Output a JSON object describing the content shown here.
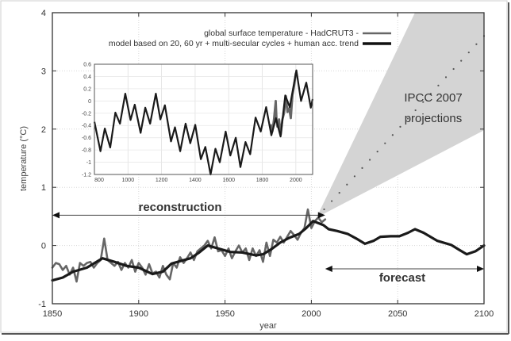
{
  "chart_data": {
    "type": "line",
    "title": "",
    "xlabel": "year",
    "ylabel": "temperature (°C)",
    "xlim": [
      1850,
      2100
    ],
    "ylim": [
      -1,
      4
    ],
    "xticks": [
      1850,
      1900,
      1950,
      2000,
      2050,
      2100
    ],
    "yticks": [
      -1,
      0,
      1,
      2,
      3,
      4
    ],
    "grid": true,
    "legend": {
      "position": "top-right",
      "entries": [
        {
          "label": "global surface temperature - HadCRUT3 -",
          "color": "#666666"
        },
        {
          "label": "model based on 20, 60 yr + multi-secular cycles + human acc. trend",
          "color": "#1a1a1a"
        }
      ]
    },
    "series": [
      {
        "name": "global surface temperature - HadCRUT3 -",
        "color": "#666666",
        "x": [
          1850,
          1852,
          1854,
          1856,
          1858,
          1860,
          1862,
          1864,
          1866,
          1868,
          1870,
          1872,
          1874,
          1876,
          1878,
          1880,
          1882,
          1884,
          1886,
          1888,
          1890,
          1892,
          1894,
          1896,
          1898,
          1900,
          1902,
          1904,
          1906,
          1908,
          1910,
          1912,
          1914,
          1916,
          1918,
          1920,
          1922,
          1924,
          1926,
          1928,
          1930,
          1932,
          1934,
          1936,
          1938,
          1940,
          1942,
          1944,
          1946,
          1948,
          1950,
          1952,
          1954,
          1956,
          1958,
          1960,
          1962,
          1964,
          1966,
          1968,
          1970,
          1972,
          1974,
          1976,
          1978,
          1980,
          1982,
          1984,
          1986,
          1988,
          1990,
          1992,
          1994,
          1996,
          1998,
          2000,
          2002,
          2004,
          2006,
          2008
        ],
        "values": [
          -0.38,
          -0.3,
          -0.32,
          -0.42,
          -0.35,
          -0.5,
          -0.38,
          -0.62,
          -0.3,
          -0.35,
          -0.3,
          -0.28,
          -0.38,
          -0.3,
          -0.25,
          0.12,
          -0.25,
          -0.3,
          -0.35,
          -0.28,
          -0.42,
          -0.3,
          -0.38,
          -0.25,
          -0.45,
          -0.3,
          -0.38,
          -0.5,
          -0.32,
          -0.48,
          -0.45,
          -0.55,
          -0.35,
          -0.5,
          -0.58,
          -0.3,
          -0.38,
          -0.2,
          -0.3,
          -0.22,
          -0.12,
          -0.25,
          -0.1,
          -0.05,
          0.0,
          0.08,
          -0.05,
          0.14,
          -0.1,
          -0.08,
          -0.18,
          -0.05,
          -0.22,
          -0.1,
          0.0,
          -0.12,
          -0.05,
          -0.25,
          -0.05,
          -0.18,
          -0.08,
          -0.28,
          0.05,
          -0.18,
          0.1,
          0.05,
          0.15,
          0.05,
          0.15,
          0.25,
          0.18,
          0.1,
          0.22,
          0.3,
          0.62,
          0.3,
          0.42,
          0.48,
          0.4,
          0.45
        ]
      },
      {
        "name": "model based on 20, 60 yr + multi-secular cycles + human acc. trend",
        "color": "#1a1a1a",
        "x": [
          1850,
          1856,
          1862,
          1870,
          1879,
          1886,
          1893,
          1900,
          1908,
          1914,
          1919,
          1925,
          1930,
          1935,
          1940,
          1946,
          1953,
          1960,
          1968,
          1972,
          1977,
          1982,
          1987,
          1993,
          1997,
          2001,
          2007,
          2010,
          2015,
          2021,
          2026,
          2031,
          2036,
          2040,
          2046,
          2051,
          2056,
          2060,
          2065,
          2073,
          2081,
          2086,
          2090,
          2095,
          2100
        ],
        "values": [
          -0.6,
          -0.55,
          -0.45,
          -0.38,
          -0.22,
          -0.28,
          -0.35,
          -0.38,
          -0.49,
          -0.45,
          -0.31,
          -0.26,
          -0.22,
          -0.12,
          0.0,
          -0.05,
          -0.11,
          -0.12,
          -0.17,
          -0.15,
          -0.06,
          0.05,
          0.13,
          0.2,
          0.3,
          0.42,
          0.35,
          0.28,
          0.25,
          0.2,
          0.12,
          0.03,
          0.08,
          0.15,
          0.16,
          0.16,
          0.22,
          0.28,
          0.22,
          0.08,
          0.01,
          -0.08,
          -0.15,
          -0.1,
          0.0
        ]
      }
    ],
    "projection_band": {
      "name": "IPCC 2007 projections",
      "color": "#d4d4d4",
      "origin": {
        "x": 2003,
        "y": 0.48
      },
      "upper": {
        "x": 2060,
        "y": 4.0
      },
      "lower": {
        "x": 2100,
        "y": 1.98
      },
      "central_dotted": {
        "x": 2100,
        "y": 3.6
      }
    },
    "annotations": [
      {
        "text": "reconstruction",
        "arrow_from": 1850,
        "arrow_to": 2008,
        "y": 0.52
      },
      {
        "text": "forecast",
        "arrow_from": 2008,
        "arrow_to": 2100,
        "y": -0.4
      },
      {
        "text_line1": "IPCC 2007",
        "text_line2": "projections"
      }
    ],
    "inset": {
      "type": "line",
      "xlim": [
        800,
        2100
      ],
      "ylim": [
        -1.2,
        0.6
      ],
      "xticks": [
        800,
        1000,
        1200,
        1400,
        1600,
        1800,
        2000
      ],
      "yticks": [
        0.6,
        0.4,
        0.2,
        0,
        -0.2,
        -0.4,
        -0.6,
        -0.8,
        -1,
        -1.2
      ],
      "ytick_labels": [
        "0.6",
        "0.4",
        "0.2",
        "0",
        "-0.2",
        "-0.4",
        "-0.6",
        "-0.8",
        "-1",
        "-1.2"
      ],
      "model": {
        "x": [
          800,
          836,
          862,
          894,
          925,
          952,
          984,
          1015,
          1040,
          1075,
          1103,
          1132,
          1166,
          1193,
          1220,
          1256,
          1280,
          1311,
          1343,
          1371,
          1401,
          1434,
          1461,
          1492,
          1521,
          1547,
          1582,
          1610,
          1642,
          1670,
          1700,
          1728,
          1760,
          1791,
          1823,
          1854,
          1881,
          1909,
          1937,
          1964,
          2003,
          2031,
          2062,
          2089,
          2100
        ],
        "values": [
          -0.34,
          -0.82,
          -0.45,
          -0.76,
          -0.19,
          -0.37,
          0.12,
          -0.31,
          -0.06,
          -0.52,
          -0.11,
          -0.37,
          0.12,
          -0.3,
          -0.07,
          -0.66,
          -0.43,
          -0.82,
          -0.37,
          -0.69,
          -0.39,
          -0.95,
          -0.75,
          -1.2,
          -0.78,
          -1.0,
          -0.5,
          -0.89,
          -0.6,
          -1.08,
          -0.67,
          -0.87,
          -0.27,
          -0.5,
          -0.1,
          -0.56,
          -0.28,
          -0.58,
          0.09,
          -0.1,
          0.5,
          0.0,
          0.3,
          -0.11,
          0.03
        ]
      },
      "observed": {
        "x": [
          1850,
          1860,
          1870,
          1880,
          1885,
          1890,
          1900,
          1910,
          1920,
          1930,
          1940,
          1950,
          1960,
          1970,
          1980,
          1990,
          2000,
          2008
        ],
        "values": [
          -0.38,
          -0.5,
          -0.3,
          0.0,
          -0.3,
          -0.42,
          -0.3,
          -0.55,
          -0.3,
          -0.2,
          0.08,
          -0.18,
          -0.12,
          -0.28,
          0.1,
          0.25,
          0.45,
          0.45
        ]
      }
    }
  }
}
